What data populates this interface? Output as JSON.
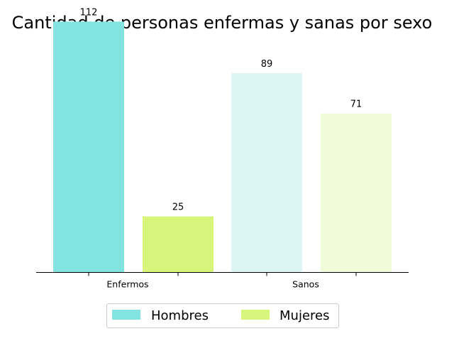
{
  "chart_data": {
    "type": "bar",
    "title": "Cantidad de personas enfermas y sanas por sexo",
    "xlabel": "",
    "ylabel": "",
    "ylim": [
      0,
      118
    ],
    "grid": false,
    "legend_position": "bottom-center",
    "bars": [
      {
        "category": "Enfermos",
        "series": "Hombres",
        "value": 112,
        "color": "#82e3e0"
      },
      {
        "category": "Enfermos",
        "series": "Mujeres",
        "value": 25,
        "color": "#d7f57a"
      },
      {
        "category": "Sanos",
        "series": "Hombres",
        "value": 89,
        "color": "#dbf6f4"
      },
      {
        "category": "Sanos",
        "series": "Mujeres",
        "value": 71,
        "color": "#f2fbd9"
      }
    ],
    "xticks": [
      "Enfermos",
      "Sanos"
    ],
    "legend": [
      {
        "name": "Hombres",
        "color": "#82e3e0"
      },
      {
        "name": "Mujeres",
        "color": "#d7f57a"
      }
    ]
  }
}
